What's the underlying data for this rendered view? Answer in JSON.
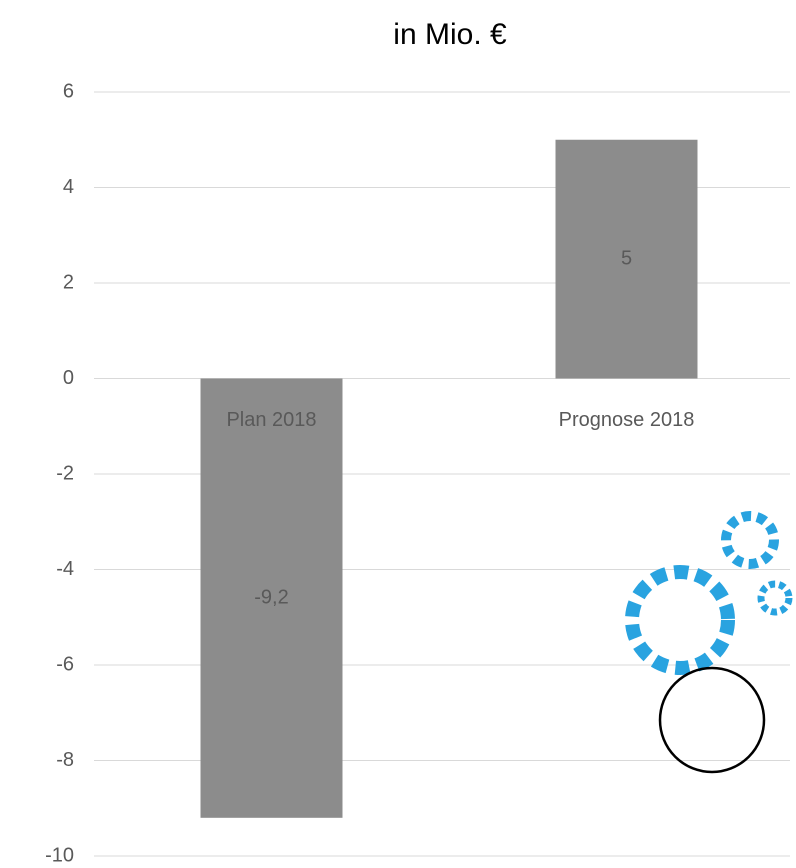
{
  "chart_data": {
    "type": "bar",
    "title": "in Mio. €",
    "categories": [
      "Plan 2018",
      "Prognose 2018"
    ],
    "values": [
      -9.2,
      5
    ],
    "value_labels": [
      "-9,2",
      "5"
    ],
    "color": "#8c8c8c",
    "ylim": [
      -10,
      6
    ],
    "yticks": [
      -10,
      -8,
      -6,
      -4,
      -2,
      0,
      2,
      4,
      6
    ],
    "grid": true
  }
}
